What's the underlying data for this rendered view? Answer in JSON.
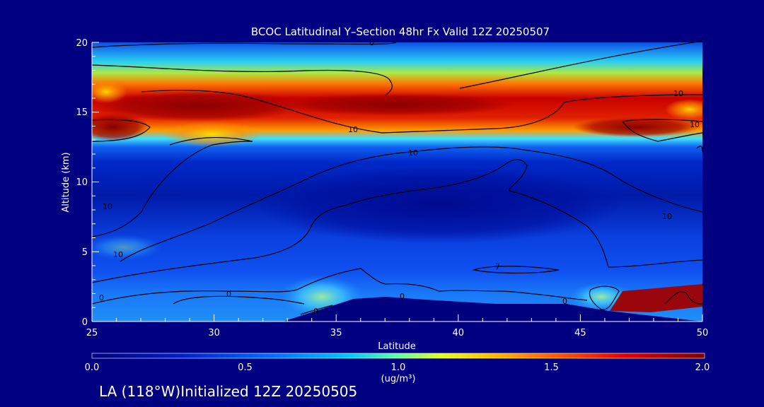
{
  "chart_data": {
    "type": "heatmap",
    "title": "BCOC Latitudinal Y–Section 48hr  Fx Valid 12Z 20250507",
    "xlabel": "Latitude",
    "ylabel": "Altitude (km)",
    "xlim": [
      25,
      50
    ],
    "ylim": [
      0,
      20
    ],
    "x_ticks": [
      "25",
      "30",
      "35",
      "40",
      "45",
      "50"
    ],
    "y_ticks": [
      "0",
      "5",
      "10",
      "15",
      "20"
    ],
    "colorbar": {
      "min": 0.0,
      "max": 2.0,
      "ticks": [
        "0.0",
        "0.5",
        "1.0",
        "1.5",
        "2.0"
      ],
      "unit": "(ug/m³)"
    },
    "contour_labels": [
      "0",
      "10",
      "10",
      "10",
      "10",
      "10",
      "10",
      "10",
      "0",
      "0",
      "0",
      "0",
      "7",
      "0"
    ],
    "bands": [
      {
        "lat": [
          25,
          50
        ],
        "alt": [
          0,
          20
        ],
        "value": 0.2
      },
      {
        "lat": [
          25,
          50
        ],
        "alt": [
          18,
          20
        ],
        "value": 0.35
      },
      {
        "lat": [
          25,
          50
        ],
        "alt": [
          16.8,
          18
        ],
        "value": 0.7
      },
      {
        "lat": [
          25,
          50
        ],
        "alt": [
          12.5,
          16.8
        ],
        "value": 1.7
      },
      {
        "lat": [
          25,
          50
        ],
        "alt": [
          11.5,
          12.5
        ],
        "value": 0.7
      },
      {
        "lat": [
          25,
          50
        ],
        "alt": [
          0,
          4
        ],
        "value": 0.4
      }
    ]
  },
  "footer": {
    "text": "LA (118°W)Initialized 12Z 20250505"
  },
  "colors": {
    "background": "#000080",
    "terrain": "#00007f",
    "contour": "#000000"
  }
}
